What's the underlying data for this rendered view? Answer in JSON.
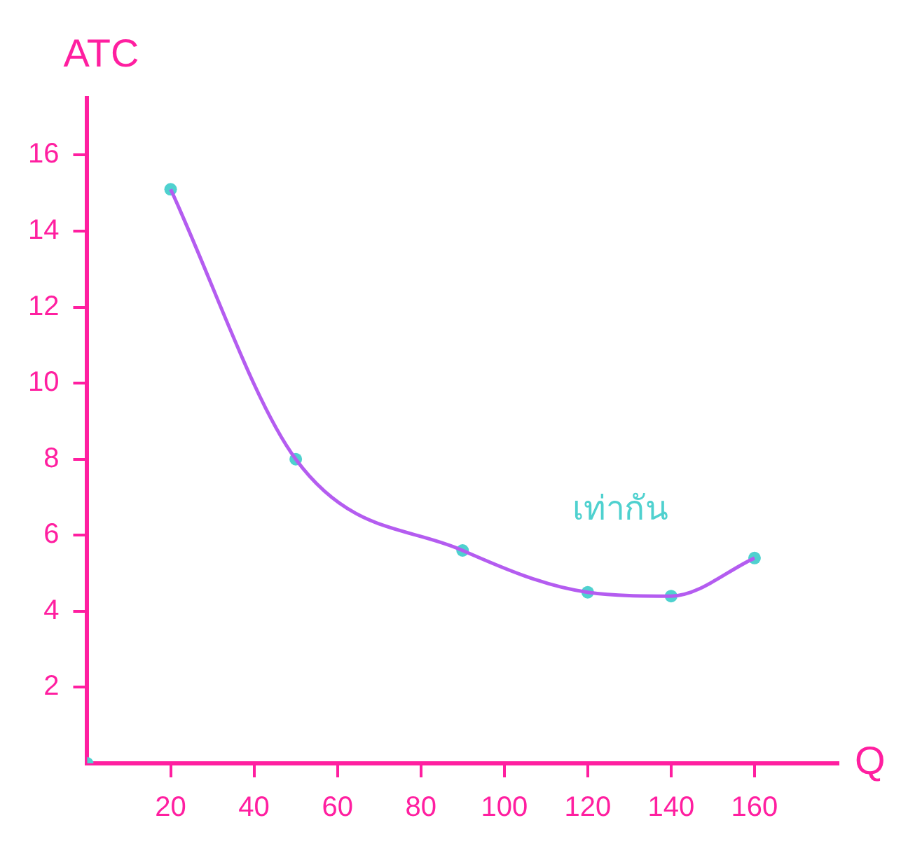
{
  "chart_data": {
    "type": "line",
    "xlabel": "Q",
    "ylabel": "ATC",
    "xlim": [
      0,
      180
    ],
    "ylim": [
      0,
      17.5
    ],
    "xticks": [
      20,
      40,
      60,
      80,
      100,
      120,
      140,
      160
    ],
    "yticks": [
      2,
      4,
      6,
      8,
      10,
      12,
      14,
      16
    ],
    "grid": false,
    "legend": false,
    "series": [
      {
        "color": "#b45cf0",
        "x": [
          20,
          50,
          90,
          120,
          140,
          160
        ],
        "values": [
          15.1,
          8,
          5.6,
          4.5,
          4.4,
          5.4
        ],
        "marker": "none",
        "line_style": "solid"
      },
      {
        "type": "scatter",
        "color": "#4fd1cf",
        "x": [
          0,
          20,
          50,
          90,
          120,
          140,
          160
        ],
        "values": [
          0,
          15.1,
          8,
          5.6,
          4.5,
          4.4,
          5.4
        ],
        "marker": "circle"
      }
    ],
    "annotations": [
      "เท่ากัน"
    ]
  }
}
